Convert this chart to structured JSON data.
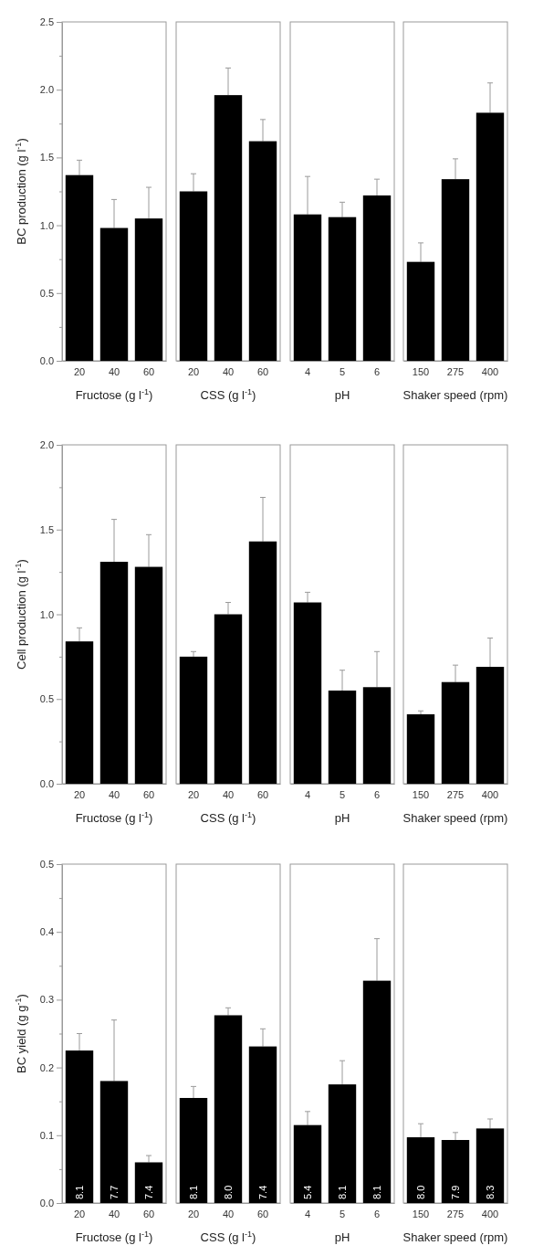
{
  "chart_data": [
    {
      "type": "bar",
      "ylabel": "BC production (g l$^{-1}$)",
      "xlabel": "Fructose (g l$^{-1}$)",
      "categories": [
        "20",
        "40",
        "60"
      ],
      "values": [
        1.37,
        0.98,
        1.05
      ],
      "errors": [
        [
          1.37,
          1.48
        ],
        [
          0.98,
          1.19
        ],
        [
          1.05,
          1.28
        ]
      ],
      "color": "#000000",
      "ylim": [
        0,
        2.5
      ],
      "yticks": [
        {
          "value": 0,
          "label": "0.0"
        },
        {
          "value": 0.25,
          "label": null
        },
        {
          "value": 0.5,
          "label": "0.5"
        },
        {
          "value": 0.75,
          "label": null
        },
        {
          "value": 1,
          "label": "1.0"
        },
        {
          "value": 1.25,
          "label": null
        },
        {
          "value": 1.5,
          "label": "1.5"
        },
        {
          "value": 1.75,
          "label": null
        },
        {
          "value": 2,
          "label": "2.0"
        },
        {
          "value": 2.25,
          "label": null
        },
        {
          "value": 2.5,
          "label": "2.5"
        }
      ]
    },
    {
      "type": "bar",
      "xlabel": "CSS (g l$^{-1}$)",
      "categories": [
        "20",
        "40",
        "60"
      ],
      "values": [
        1.25,
        1.96,
        1.62
      ],
      "errors": [
        [
          1.25,
          1.38
        ],
        [
          1.96,
          2.16
        ],
        [
          1.62,
          1.78
        ]
      ],
      "color": "#000000",
      "ylim": [
        0,
        2.5
      ],
      "tick_labels": "x"
    },
    {
      "type": "bar",
      "xlabel": "pH",
      "categories": [
        "4",
        "5",
        "6"
      ],
      "values": [
        1.08,
        1.06,
        1.22
      ],
      "errors": [
        [
          1.08,
          1.36
        ],
        [
          1.06,
          1.17
        ],
        [
          1.22,
          1.34
        ]
      ],
      "color": "#000000",
      "ylim": [
        0,
        2.5
      ],
      "tick_labels": "x"
    },
    {
      "type": "bar",
      "xlabel": "Shaker speed (rpm)",
      "categories": [
        "150",
        "275",
        "400"
      ],
      "values": [
        0.73,
        1.34,
        1.83
      ],
      "errors": [
        [
          0.73,
          0.87
        ],
        [
          1.34,
          1.49
        ],
        [
          1.83,
          2.05
        ]
      ],
      "color": "#000000",
      "ylim": [
        0,
        2.5
      ],
      "tick_labels": "x"
    },
    {
      "type": "bar",
      "ylabel": "Cell production (g l$^{-1}$)",
      "xlabel": "Fructose (g l$^{-1}$)",
      "categories": [
        "20",
        "40",
        "60"
      ],
      "values": [
        0.84,
        1.31,
        1.28
      ],
      "errors": [
        [
          0.84,
          0.92
        ],
        [
          1.31,
          1.56
        ],
        [
          1.28,
          1.47
        ]
      ],
      "color": "#000000",
      "ylim": [
        0,
        2
      ],
      "yticks": [
        {
          "value": 0,
          "label": "0.0"
        },
        {
          "value": 0.25,
          "label": null
        },
        {
          "value": 0.5,
          "label": "0.5"
        },
        {
          "value": 0.75,
          "label": null
        },
        {
          "value": 1,
          "label": "1.0"
        },
        {
          "value": 1.25,
          "label": null
        },
        {
          "value": 1.5,
          "label": "1.5"
        },
        {
          "value": 1.75,
          "label": null
        },
        {
          "value": 2,
          "label": "2.0"
        }
      ]
    },
    {
      "type": "bar",
      "xlabel": "CSS (g l$^{-1}$)",
      "categories": [
        "20",
        "40",
        "60"
      ],
      "values": [
        0.75,
        1.0,
        1.43
      ],
      "errors": [
        [
          0.75,
          0.78
        ],
        [
          1.0,
          1.07
        ],
        [
          1.43,
          1.69
        ]
      ],
      "color": "#000000",
      "ylim": [
        0,
        2
      ],
      "tick_labels": "x"
    },
    {
      "type": "bar",
      "xlabel": "pH",
      "categories": [
        "4",
        "5",
        "6"
      ],
      "values": [
        1.07,
        0.55,
        0.57
      ],
      "errors": [
        [
          1.07,
          1.13
        ],
        [
          0.55,
          0.67
        ],
        [
          0.57,
          0.78
        ]
      ],
      "color": "#000000",
      "ylim": [
        0,
        2
      ],
      "tick_labels": "x"
    },
    {
      "type": "bar",
      "xlabel": "Shaker speed (rpm)",
      "categories": [
        "150",
        "275",
        "400"
      ],
      "values": [
        0.41,
        0.6,
        0.69
      ],
      "errors": [
        [
          0.41,
          0.43
        ],
        [
          0.6,
          0.7
        ],
        [
          0.69,
          0.86
        ]
      ],
      "color": "#000000",
      "ylim": [
        0,
        2
      ],
      "tick_labels": "x"
    },
    {
      "type": "bar",
      "ylabel": "BC yield (g g$^{-1}$)",
      "xlabel": "Fructose (g l$^{-1}$)",
      "categories": [
        "20",
        "40",
        "60"
      ],
      "values": [
        0.225,
        0.18,
        0.06
      ],
      "errors": [
        [
          0.225,
          0.25
        ],
        [
          0.18,
          0.27
        ],
        [
          0.06,
          0.07
        ]
      ],
      "annotations": [
        {
          "text": "8.1",
          "x": "20",
          "y": 0
        },
        {
          "text": "7.7",
          "x": "40",
          "y": 0
        },
        {
          "text": "7.4",
          "x": "60",
          "y": 0
        }
      ],
      "color": "#000000",
      "ylim": [
        0,
        0.5
      ],
      "yticks": [
        {
          "value": 0,
          "label": "0.0"
        },
        {
          "value": 0.05,
          "label": null
        },
        {
          "value": 0.1,
          "label": "0.1"
        },
        {
          "value": 0.15,
          "label": null
        },
        {
          "value": 0.2,
          "label": "0.2"
        },
        {
          "value": 0.25,
          "label": null
        },
        {
          "value": 0.3,
          "label": "0.3"
        },
        {
          "value": 0.35,
          "label": null
        },
        {
          "value": 0.4,
          "label": "0.4"
        },
        {
          "value": 0.45,
          "label": null
        },
        {
          "value": 0.5,
          "label": "0.5"
        }
      ]
    },
    {
      "type": "bar",
      "xlabel": "CSS (g l$^{-1}$)",
      "categories": [
        "20",
        "40",
        "60"
      ],
      "values": [
        0.155,
        0.277,
        0.231
      ],
      "errors": [
        [
          0.155,
          0.172
        ],
        [
          0.277,
          0.288
        ],
        [
          0.231,
          0.257
        ]
      ],
      "annotations": [
        {
          "text": "8.1",
          "x": "20",
          "y": 0
        },
        {
          "text": "8.0",
          "x": "40",
          "y": 0
        },
        {
          "text": "7.4",
          "x": "60",
          "y": 0
        }
      ],
      "color": "#000000",
      "ylim": [
        0,
        0.5
      ],
      "tick_labels": "x"
    },
    {
      "type": "bar",
      "xlabel": "pH",
      "categories": [
        "4",
        "5",
        "6"
      ],
      "values": [
        0.115,
        0.175,
        0.328
      ],
      "errors": [
        [
          0.115,
          0.135
        ],
        [
          0.175,
          0.21
        ],
        [
          0.328,
          0.39
        ]
      ],
      "annotations": [
        {
          "text": "5.4",
          "x": "4",
          "y": 0
        },
        {
          "text": "8.1",
          "x": "5",
          "y": 0
        },
        {
          "text": "8.1",
          "x": "6",
          "y": 0
        }
      ],
      "color": "#000000",
      "ylim": [
        0,
        0.5
      ],
      "tick_labels": "x"
    },
    {
      "type": "bar",
      "xlabel": "Shaker speed (rpm)",
      "categories": [
        "150",
        "275",
        "400"
      ],
      "values": [
        0.097,
        0.093,
        0.11
      ],
      "errors": [
        [
          0.097,
          0.117
        ],
        [
          0.093,
          0.104
        ],
        [
          0.11,
          0.124
        ]
      ],
      "annotations": [
        {
          "text": "8.0",
          "x": "150",
          "y": 0
        },
        {
          "text": "7.9",
          "x": "275",
          "y": 0
        },
        {
          "text": "8.3",
          "x": "400",
          "y": 0
        }
      ],
      "color": "#000000",
      "ylim": [
        0,
        0.5
      ],
      "tick_labels": "x"
    }
  ]
}
